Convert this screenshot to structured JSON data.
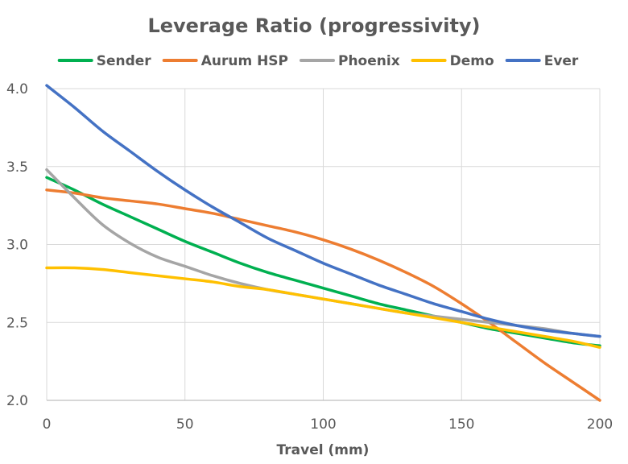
{
  "chart_data": {
    "type": "line",
    "title": "Leverage Ratio (progressivity)",
    "xlabel": "Travel (mm)",
    "ylabel": "",
    "xlim": [
      0,
      200
    ],
    "ylim": [
      2.0,
      4.0
    ],
    "x_ticks": [
      "0",
      "50",
      "100",
      "150",
      "200"
    ],
    "y_ticks": [
      "2.0",
      "2.5",
      "3.0",
      "3.5",
      "4.0"
    ],
    "grid": true,
    "legend_position": "top",
    "series": [
      {
        "name": "Sender",
        "color": "#00B050",
        "x": [
          0,
          10,
          20,
          30,
          40,
          50,
          60,
          70,
          80,
          90,
          100,
          110,
          120,
          130,
          140,
          150,
          160,
          170,
          180,
          190,
          200
        ],
        "y": [
          3.43,
          3.35,
          3.26,
          3.18,
          3.1,
          3.02,
          2.95,
          2.88,
          2.82,
          2.77,
          2.72,
          2.67,
          2.62,
          2.58,
          2.54,
          2.5,
          2.46,
          2.43,
          2.4,
          2.37,
          2.35
        ]
      },
      {
        "name": "Aurum HSP",
        "color": "#ED7D31",
        "x": [
          0,
          10,
          20,
          30,
          40,
          50,
          60,
          70,
          80,
          90,
          100,
          110,
          120,
          130,
          140,
          150,
          160,
          170,
          180,
          190,
          200
        ],
        "y": [
          3.35,
          3.33,
          3.3,
          3.28,
          3.26,
          3.23,
          3.2,
          3.16,
          3.12,
          3.08,
          3.03,
          2.97,
          2.9,
          2.82,
          2.73,
          2.62,
          2.5,
          2.37,
          2.24,
          2.12,
          2.0
        ]
      },
      {
        "name": "Phoenix",
        "color": "#A5A5A5",
        "x": [
          0,
          10,
          20,
          30,
          40,
          50,
          60,
          70,
          80,
          90,
          100,
          110,
          120,
          130,
          140,
          150,
          160,
          170,
          180,
          190,
          200
        ],
        "y": [
          3.48,
          3.3,
          3.13,
          3.01,
          2.92,
          2.86,
          2.8,
          2.75,
          2.71,
          2.68,
          2.65,
          2.62,
          2.59,
          2.56,
          2.54,
          2.52,
          2.5,
          2.48,
          2.46,
          2.43,
          2.41
        ]
      },
      {
        "name": "Demo",
        "color": "#FFC000",
        "x": [
          0,
          10,
          20,
          30,
          40,
          50,
          60,
          70,
          80,
          90,
          100,
          110,
          120,
          130,
          140,
          150,
          160,
          170,
          180,
          190,
          200
        ],
        "y": [
          2.85,
          2.85,
          2.84,
          2.82,
          2.8,
          2.78,
          2.76,
          2.73,
          2.71,
          2.68,
          2.65,
          2.62,
          2.59,
          2.56,
          2.53,
          2.5,
          2.47,
          2.44,
          2.41,
          2.38,
          2.34
        ]
      },
      {
        "name": "Ever",
        "color": "#4472C4",
        "x": [
          0,
          10,
          20,
          30,
          40,
          50,
          60,
          70,
          80,
          90,
          100,
          110,
          120,
          130,
          140,
          150,
          160,
          170,
          180,
          190,
          200
        ],
        "y": [
          4.02,
          3.88,
          3.73,
          3.6,
          3.47,
          3.35,
          3.24,
          3.14,
          3.04,
          2.96,
          2.88,
          2.81,
          2.74,
          2.68,
          2.62,
          2.57,
          2.52,
          2.48,
          2.45,
          2.43,
          2.41
        ]
      }
    ]
  },
  "colors": {
    "text": "#595959",
    "grid": "#D9D9D9",
    "axis": "#BFBFBF"
  }
}
